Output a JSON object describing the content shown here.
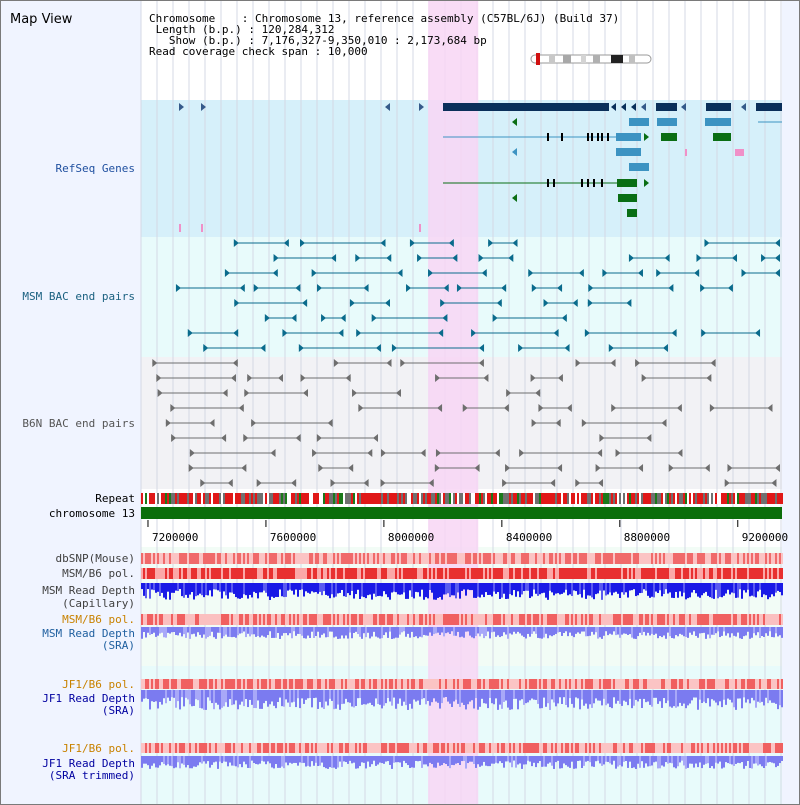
{
  "title": "Map View",
  "info": {
    "chromosome_key": "Chromosome",
    "chromosome_value": "Chromosome 13, reference assembly (C57BL/6J) (Build 37)",
    "length_key": "Length (b.p.)",
    "length_value": "120,284,312",
    "show_key": "Show (b.p.)",
    "show_value": "7,176,327-9,350,010 : 2,173,684 bp",
    "coverage_key": "Read coverage check span",
    "coverage_value": "10,000"
  },
  "track_labels": {
    "refseq": "RefSeq Genes",
    "msm_bac": "MSM BAC end pairs",
    "b6n_bac": "B6N BAC end pairs",
    "repeat": "Repeat",
    "chromosome": "chromosome 13",
    "dbsnp": "dbSNP(Mouse)",
    "msm_b6_pol_1": "MSM/B6 pol.",
    "msm_depth_cap_1": "MSM Read Depth",
    "msm_depth_cap_2": "(Capillary)",
    "msm_b6_pol_2": "MSM/B6 pol.",
    "msm_depth_sra_1": "MSM Read Depth",
    "msm_depth_sra_2": "(SRA)",
    "jf1_b6_pol_1": "JF1/B6 pol.",
    "jf1_depth_sra_1": "JF1 Read Depth",
    "jf1_depth_sra_2": "(SRA)",
    "jf1_b6_pol_2": "JF1/B6 pol.",
    "jf1_depth_trim_1": "JF1 Read Depth",
    "jf1_depth_trim_2": "(SRA trimmed)"
  },
  "axis": {
    "start": 7176327,
    "end": 9350010,
    "ticks": [
      "7200000",
      "7600000",
      "8000000",
      "8400000",
      "8800000",
      "9200000"
    ],
    "tick_values": [
      7200000,
      7600000,
      8000000,
      8400000,
      8800000,
      9200000
    ]
  },
  "highlight": {
    "start": 8150000,
    "end": 8320000
  },
  "colors": {
    "refseq_bg": "#d6f0fa",
    "refseq_gene_dark": "#0a2f5a",
    "refseq_gene_light": "#3c93c2",
    "refseq_gene_green": "#0a6e14",
    "msm_bac": "#0a6b8c",
    "b6n_bac": "#6e6e6e",
    "highlight": "#f8d6f4",
    "chromosome_bar": "#0b6e0b",
    "snp": "#f07878",
    "depth_capillary": "#1a1ae6",
    "depth_sra": "#7b7bf0",
    "pol_label": "#c88200",
    "depth_label": "#0000a0",
    "msm_label": "#2060a0"
  }
}
